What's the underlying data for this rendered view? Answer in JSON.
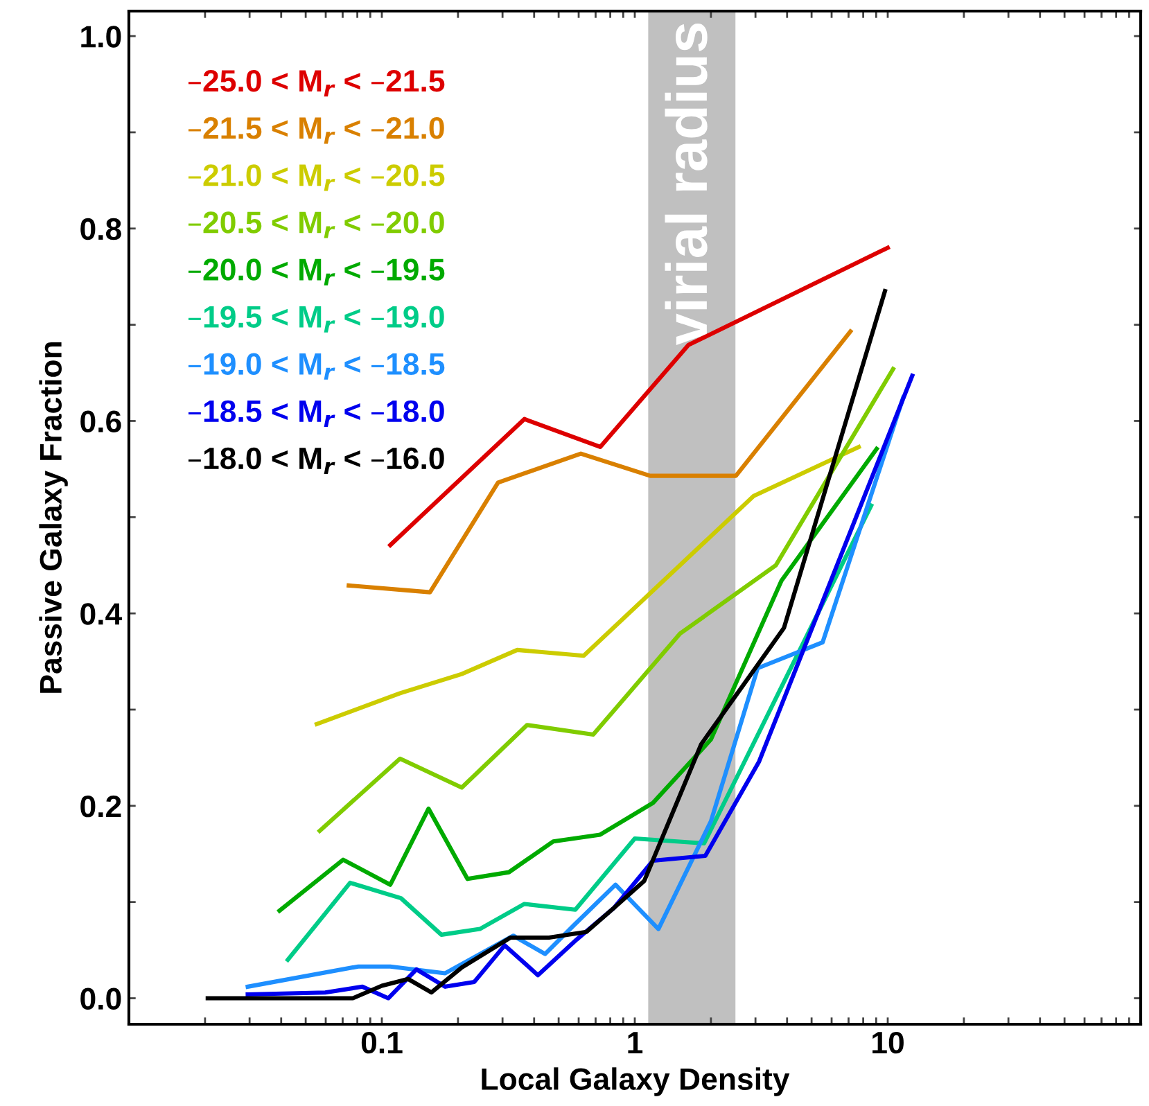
{
  "chart_data": {
    "type": "line",
    "xlabel": "Local Galaxy Density",
    "ylabel": "Passive Galaxy Fraction",
    "log": "x",
    "xlim": [
      0.01,
      100
    ],
    "ylim": [
      -0.027,
      1.026
    ],
    "xticks": [
      {
        "value": 0.02,
        "label": null
      },
      {
        "value": 0.03,
        "label": null
      },
      {
        "value": 0.04,
        "label": null
      },
      {
        "value": 0.05,
        "label": null
      },
      {
        "value": 0.06,
        "label": null
      },
      {
        "value": 0.07,
        "label": null
      },
      {
        "value": 0.08,
        "label": null
      },
      {
        "value": 0.09,
        "label": null
      },
      0.1,
      {
        "value": 0.2,
        "label": null
      },
      {
        "value": 0.3,
        "label": null
      },
      {
        "value": 0.4,
        "label": null
      },
      {
        "value": 0.5,
        "label": null
      },
      {
        "value": 0.6,
        "label": null
      },
      {
        "value": 0.7,
        "label": null
      },
      {
        "value": 0.8,
        "label": null
      },
      {
        "value": 0.9,
        "label": null
      },
      1,
      {
        "value": 2,
        "label": null
      },
      {
        "value": 3,
        "label": null
      },
      {
        "value": 4,
        "label": null
      },
      {
        "value": 5,
        "label": null
      },
      {
        "value": 6,
        "label": null
      },
      {
        "value": 7,
        "label": null
      },
      {
        "value": 8,
        "label": null
      },
      {
        "value": 9,
        "label": null
      },
      10,
      {
        "value": 20,
        "label": null
      },
      {
        "value": 30,
        "label": null
      },
      {
        "value": 40,
        "label": null
      },
      {
        "value": 50,
        "label": null
      },
      {
        "value": 60,
        "label": null
      },
      {
        "value": 70,
        "label": null
      },
      {
        "value": 80,
        "label": null
      },
      {
        "value": 90,
        "label": null
      }
    ],
    "yticks": [
      {
        "value": 0,
        "label": "0.0"
      },
      {
        "value": 0.1,
        "label": null
      },
      {
        "value": 0.2,
        "label": "0.2"
      },
      {
        "value": 0.3,
        "label": null
      },
      {
        "value": 0.4,
        "label": "0.4"
      },
      {
        "value": 0.5,
        "label": null
      },
      {
        "value": 0.6,
        "label": "0.6"
      },
      {
        "value": 0.7,
        "label": null
      },
      {
        "value": 0.8,
        "label": "0.8"
      },
      {
        "value": 0.9,
        "label": null
      },
      {
        "value": 1.0,
        "label": "1.0"
      }
    ],
    "grid": false,
    "legend": "top left",
    "marker": "none",
    "line_style": "solid",
    "bands": [
      {
        "axis": "x",
        "from": 1.13,
        "to": 2.5,
        "label": "virial radius",
        "color": "#c0c0c0"
      }
    ],
    "series": [
      {
        "name": "–25.0 < M$_{r}$ < –21.5",
        "color": "#dd0000",
        "x": [
          0.108,
          0.366,
          0.73,
          1.63,
          10.0
        ],
        "values": [
          0.471,
          0.602,
          0.573,
          0.679,
          0.78
        ]
      },
      {
        "name": "–21.5 < M$_{r}$ < –21.0",
        "color": "#d98000",
        "x": [
          0.074,
          0.155,
          0.288,
          0.612,
          1.15,
          2.51,
          7.12
        ],
        "values": [
          0.429,
          0.422,
          0.536,
          0.566,
          0.543,
          0.543,
          0.693
        ]
      },
      {
        "name": "–21.0 < M$_{r}$ < –20.5",
        "color": "#cccc00",
        "x": [
          0.0553,
          0.118,
          0.207,
          0.343,
          0.628,
          2.95,
          7.68
        ],
        "values": [
          0.285,
          0.317,
          0.337,
          0.362,
          0.356,
          0.522,
          0.573
        ]
      },
      {
        "name": "–20.5 < M$_{r}$ < –20.0",
        "color": "#80cc00",
        "x": [
          0.0568,
          0.118,
          0.207,
          0.375,
          0.685,
          1.51,
          3.61,
          10.5
        ],
        "values": [
          0.174,
          0.249,
          0.219,
          0.284,
          0.274,
          0.379,
          0.45,
          0.654
        ]
      },
      {
        "name": "–20.0 < M$_{r}$ < –19.5",
        "color": "#00aa00",
        "x": [
          0.0394,
          0.0703,
          0.108,
          0.153,
          0.218,
          0.318,
          0.476,
          0.73,
          1.18,
          2.0,
          3.8,
          9.04
        ],
        "values": [
          0.091,
          0.144,
          0.118,
          0.197,
          0.124,
          0.131,
          0.163,
          0.17,
          0.203,
          0.269,
          0.434,
          0.571
        ]
      },
      {
        "name": "–19.5 < M$_{r}$ < –19.0",
        "color": "#00cc88",
        "x": [
          0.0425,
          0.0749,
          0.119,
          0.172,
          0.244,
          0.366,
          0.582,
          1.0,
          1.88,
          8.6
        ],
        "values": [
          0.04,
          0.12,
          0.104,
          0.066,
          0.072,
          0.098,
          0.092,
          0.166,
          0.161,
          0.512
        ]
      },
      {
        "name": "–19.0 < M$_{r}$ < –18.5",
        "color": "#1e8fff",
        "x": [
          0.0295,
          0.0807,
          0.108,
          0.178,
          0.331,
          0.442,
          0.575,
          0.839,
          1.24,
          2.0,
          3.06,
          5.53,
          11.5
        ],
        "values": [
          0.012,
          0.033,
          0.033,
          0.026,
          0.065,
          0.046,
          0.076,
          0.118,
          0.072,
          0.184,
          0.343,
          0.37,
          0.624
        ]
      },
      {
        "name": "–18.5 < M$_{r}$ < –18.0",
        "color": "#0000ee",
        "x": [
          0.0295,
          0.0597,
          0.0838,
          0.106,
          0.137,
          0.178,
          0.232,
          0.306,
          0.414,
          0.589,
          0.828,
          1.18,
          1.9,
          3.1,
          12.5
        ],
        "values": [
          0.004,
          0.006,
          0.012,
          0.0,
          0.03,
          0.012,
          0.017,
          0.055,
          0.024,
          0.061,
          0.094,
          0.143,
          0.148,
          0.246,
          0.647
        ]
      },
      {
        "name": "–18.0 < M$_{r}$ < –16.0",
        "color": "#000000",
        "x": [
          0.0205,
          0.0768,
          0.1,
          0.127,
          0.157,
          0.207,
          0.322,
          0.458,
          0.644,
          0.828,
          1.09,
          1.83,
          3.89,
          9.75
        ],
        "values": [
          0.0,
          0.0,
          0.013,
          0.02,
          0.006,
          0.032,
          0.063,
          0.063,
          0.069,
          0.094,
          0.122,
          0.264,
          0.385,
          0.735
        ]
      }
    ]
  }
}
